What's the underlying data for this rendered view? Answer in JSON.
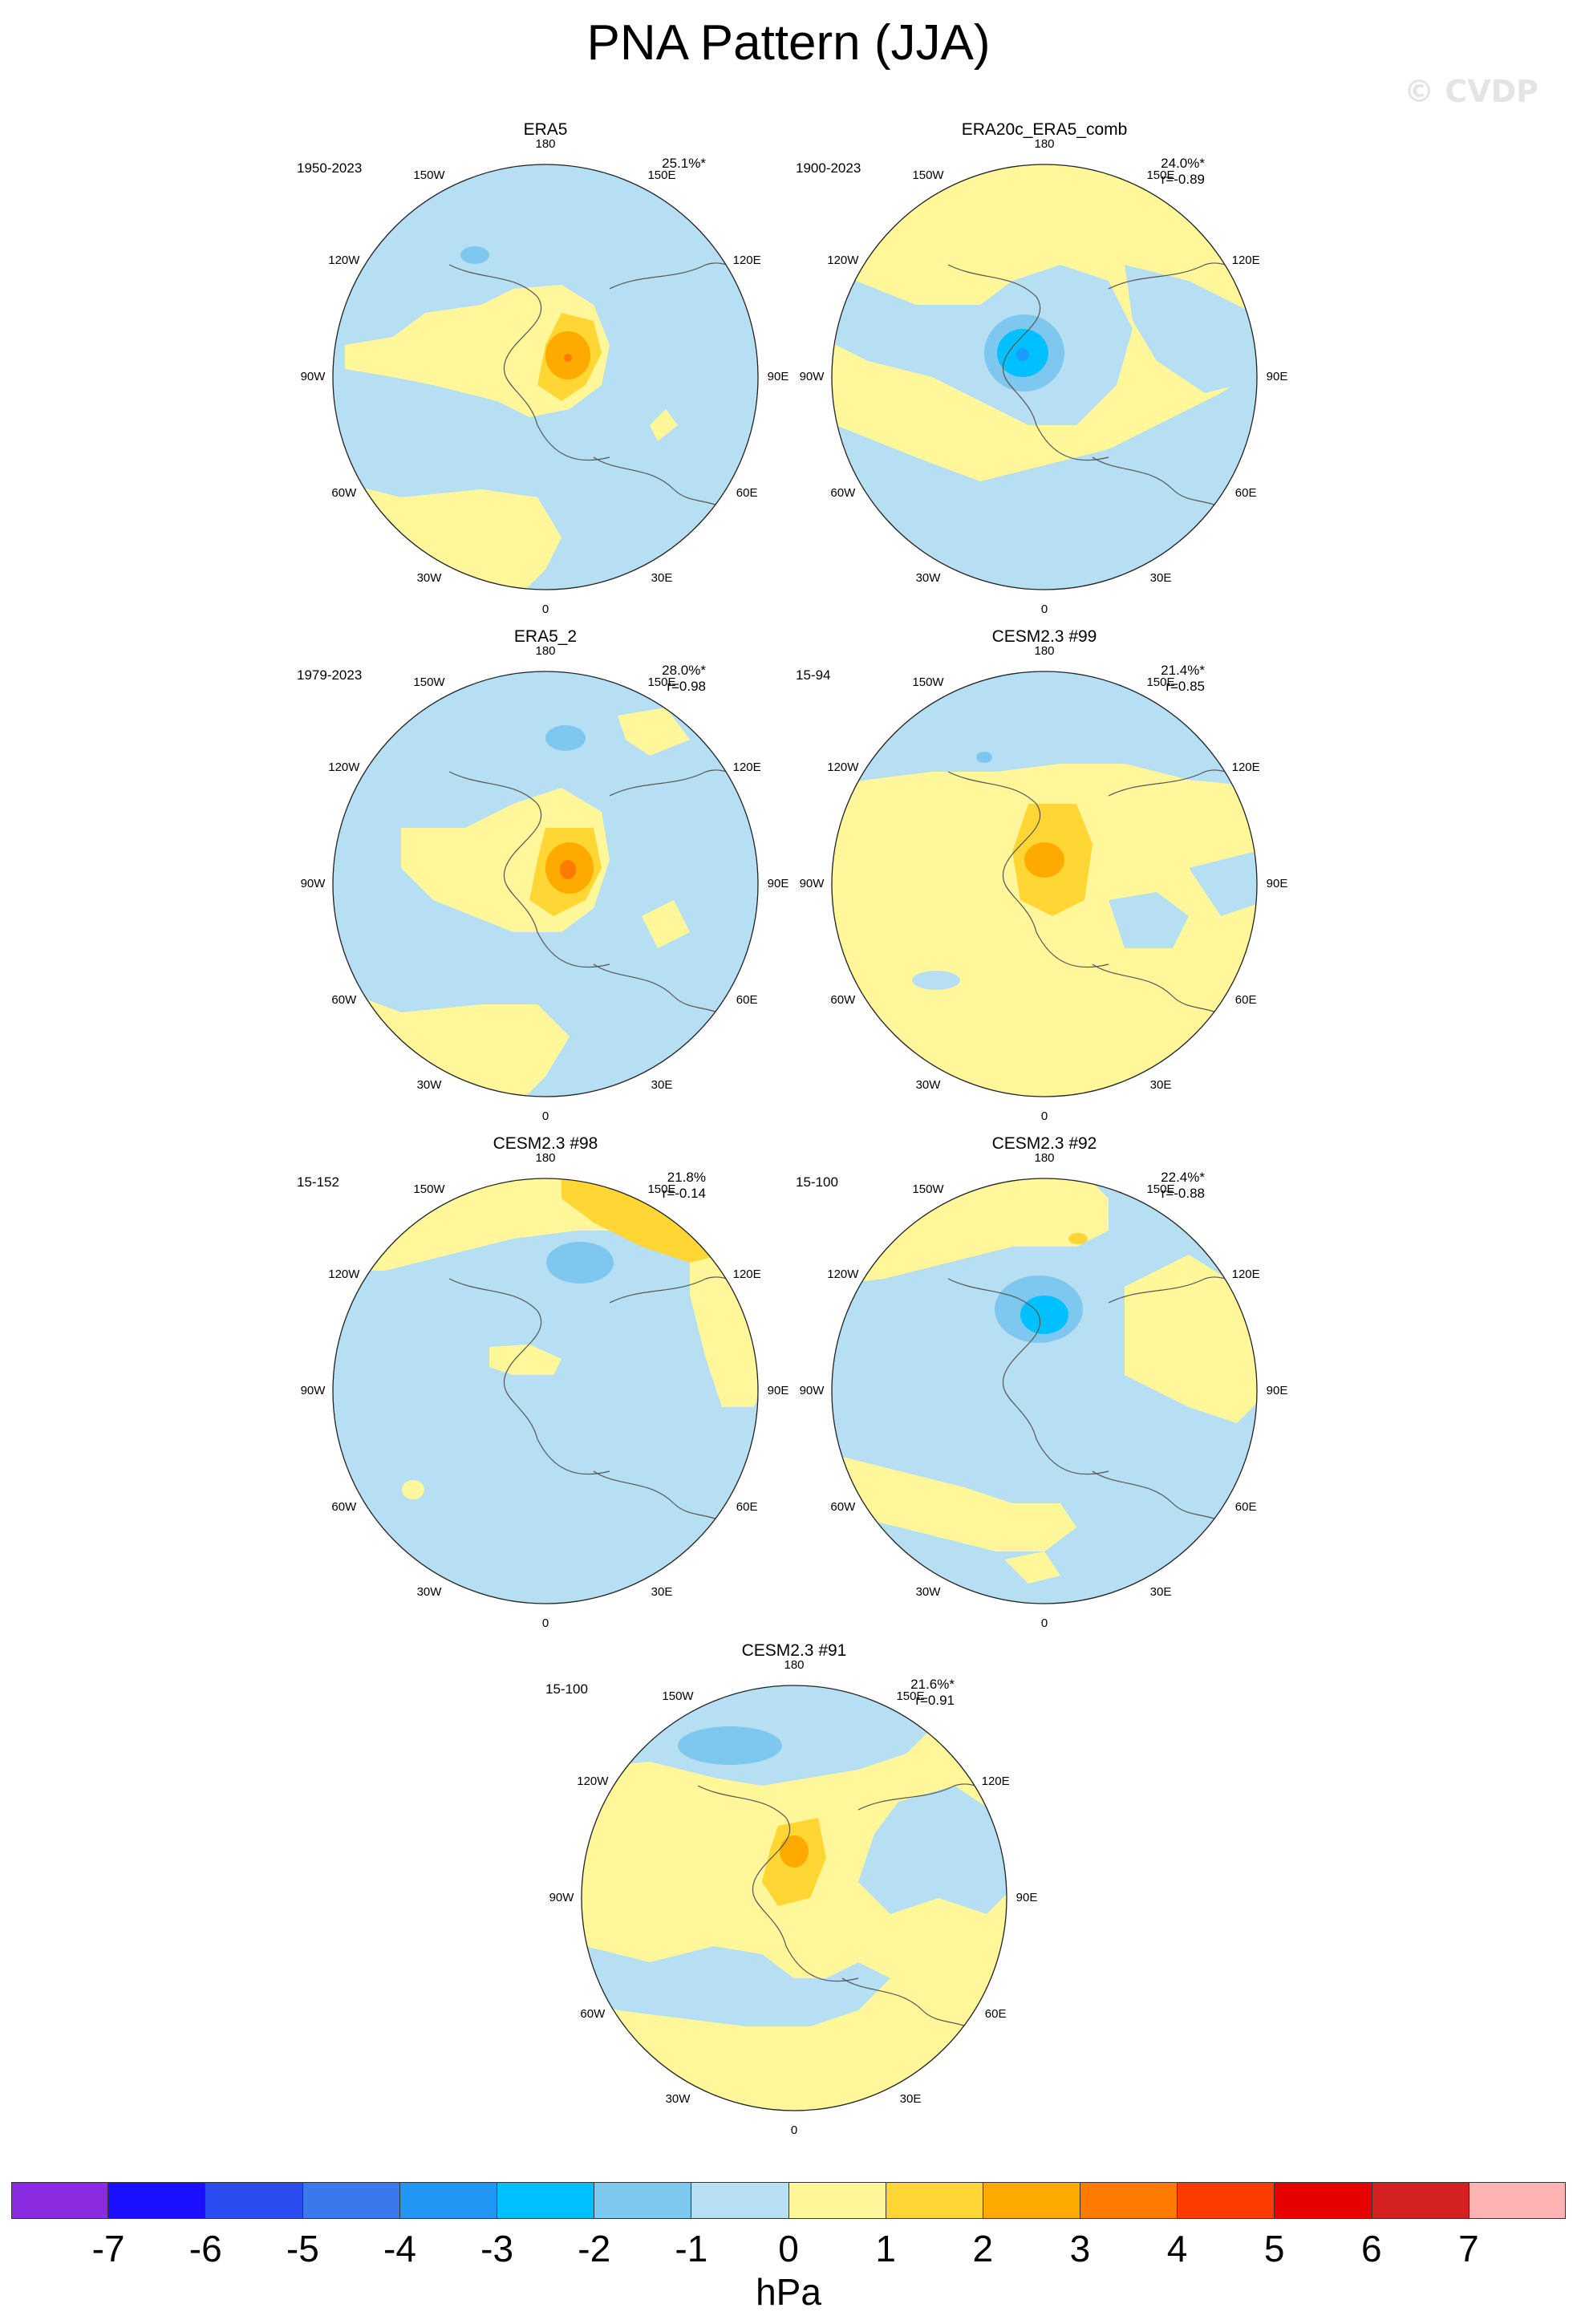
{
  "title": "PNA Pattern (JJA)",
  "watermark": "© CVDP",
  "colors": {
    "ocean_blue": "#b7dff3",
    "land_yellow": "#fff79a",
    "pos1": "#ffd633",
    "pos2": "#ffaa00",
    "pos3": "#ff7b00",
    "neg1": "#7ec8f0",
    "neg2": "#00c0ff",
    "neg3": "#1e9bff",
    "coast": "#555555"
  },
  "longitude_labels": [
    "180",
    "150E",
    "120E",
    "90E",
    "60E",
    "30E",
    "0",
    "30W",
    "60W",
    "90W",
    "120W",
    "150W"
  ],
  "panels": [
    {
      "title": "ERA5",
      "period": "1950-2023",
      "pct": "25.1%*",
      "r": ""
    },
    {
      "title": "ERA20c_ERA5_comb",
      "period": "1900-2023",
      "pct": "24.0%*",
      "r": "r=-0.89"
    },
    {
      "title": "ERA5_2",
      "period": "1979-2023",
      "pct": "28.0%*",
      "r": "r=0.98"
    },
    {
      "title": "CESM2.3 #99",
      "period": "15-94",
      "pct": "21.4%*",
      "r": "r=0.85"
    },
    {
      "title": "CESM2.3 #98",
      "period": "15-152",
      "pct": "21.8%",
      "r": "r=-0.14"
    },
    {
      "title": "CESM2.3 #92",
      "period": "15-100",
      "pct": "22.4%*",
      "r": "r=-0.88"
    },
    {
      "title": "CESM2.3 #91",
      "period": "15-100",
      "pct": "21.6%*",
      "r": "r=0.91"
    }
  ],
  "colorbar": {
    "colors": [
      "#8a2be2",
      "#1a10ff",
      "#2a4cf0",
      "#3a78ec",
      "#2196f3",
      "#00c0ff",
      "#7ec8f0",
      "#b7dff3",
      "#fff79a",
      "#ffd633",
      "#ffaa00",
      "#ff7b00",
      "#ff3c00",
      "#e60000",
      "#d42020",
      "#ffb3b3"
    ],
    "ticks": [
      "-7",
      "-6",
      "-5",
      "-4",
      "-3",
      "-2",
      "-1",
      "0",
      "1",
      "2",
      "3",
      "4",
      "5",
      "6",
      "7"
    ],
    "unit": "hPa"
  }
}
